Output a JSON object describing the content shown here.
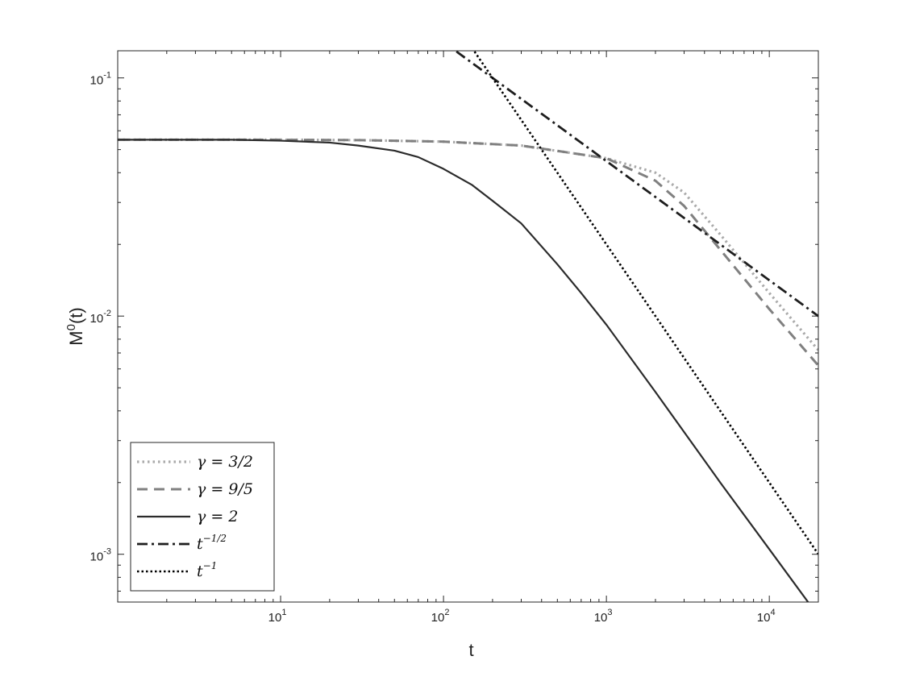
{
  "chart_data": {
    "type": "line",
    "title": "",
    "xlabel": "t",
    "ylabel": {
      "base": "M",
      "sup": "0",
      "rest": "(t)"
    },
    "x_scale": "log",
    "y_scale": "log",
    "xlim": [
      1,
      20000
    ],
    "ylim": [
      0.00063,
      0.13
    ],
    "x_ticks": [
      {
        "value": 10,
        "base": "10",
        "exp": "1"
      },
      {
        "value": 100,
        "base": "10",
        "exp": "2"
      },
      {
        "value": 1000,
        "base": "10",
        "exp": "3"
      },
      {
        "value": 10000,
        "base": "10",
        "exp": "4"
      }
    ],
    "y_ticks": [
      {
        "value": 0.001,
        "base": "10",
        "exp": "-3"
      },
      {
        "value": 0.01,
        "base": "10",
        "exp": "-2"
      },
      {
        "value": 0.1,
        "base": "10",
        "exp": "-1"
      }
    ],
    "grid": false,
    "legend_position": "bottom-left",
    "series": [
      {
        "name": "γ = 3/2",
        "label_main": "γ = 3/2",
        "label_sup": "",
        "color": "#aaaaaa",
        "style": "dotted",
        "x": [
          1,
          10,
          30,
          100,
          300,
          1000,
          2000,
          3000,
          5000,
          10000,
          20000
        ],
        "y": [
          0.055,
          0.055,
          0.0548,
          0.054,
          0.052,
          0.046,
          0.04,
          0.033,
          0.022,
          0.0125,
          0.0072
        ]
      },
      {
        "name": "γ = 9/5",
        "label_main": "γ = 9/5",
        "label_sup": "",
        "color": "#808080",
        "style": "dashed",
        "x": [
          1,
          10,
          30,
          100,
          300,
          1000,
          2000,
          3000,
          5000,
          10000,
          20000
        ],
        "y": [
          0.055,
          0.055,
          0.0548,
          0.054,
          0.052,
          0.046,
          0.037,
          0.029,
          0.019,
          0.0107,
          0.0062
        ]
      },
      {
        "name": "γ = 2",
        "label_main": "γ = 2",
        "label_sup": "",
        "color": "#2b2b2b",
        "style": "solid",
        "x": [
          1,
          5,
          10,
          20,
          30,
          50,
          70,
          100,
          150,
          200,
          300,
          500,
          700,
          1000,
          2000,
          5000,
          10000,
          20000
        ],
        "y": [
          0.055,
          0.055,
          0.0545,
          0.0535,
          0.052,
          0.0495,
          0.0465,
          0.0415,
          0.0355,
          0.0305,
          0.0245,
          0.0165,
          0.0125,
          0.0092,
          0.0048,
          0.002,
          0.00105,
          0.00055
        ]
      },
      {
        "name": "t^-1/2",
        "label_main": "t",
        "label_sup": "−1/2",
        "color": "#1e1e1e",
        "style": "dashdot",
        "x": [
          120,
          20000
        ],
        "y": [
          0.1291,
          0.01
        ]
      },
      {
        "name": "t^-1",
        "label_main": "t",
        "label_sup": "−1",
        "color": "#000000",
        "style": "dotted-dense",
        "x": [
          155,
          20000
        ],
        "y": [
          0.129,
          0.001
        ]
      }
    ]
  }
}
